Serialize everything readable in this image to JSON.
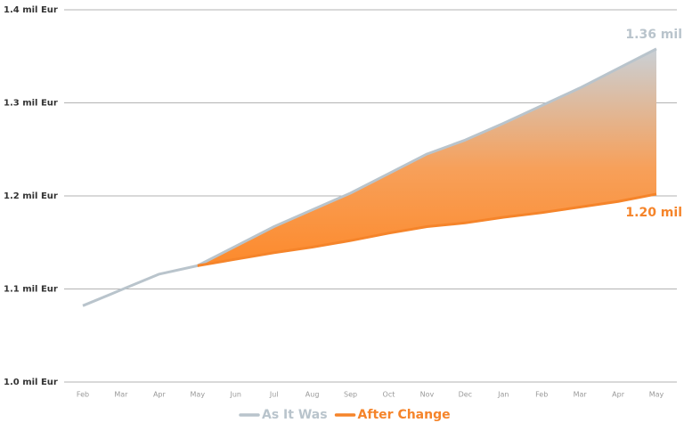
{
  "chart_data": {
    "type": "line",
    "categories": [
      "Feb",
      "Mar",
      "Apr",
      "May",
      "Jun",
      "Jul",
      "Aug",
      "Sep",
      "Oct",
      "Nov",
      "Dec",
      "Jan",
      "Feb",
      "Mar",
      "Apr",
      "May"
    ],
    "series": [
      {
        "name": "As It Was",
        "color": "#b9c4cc",
        "values": [
          1.082,
          1.099,
          1.116,
          1.125,
          1.146,
          1.167,
          1.185,
          1.203,
          1.224,
          1.245,
          1.26,
          1.278,
          1.297,
          1.316,
          1.337,
          1.358
        ],
        "value_labels": [
          null,
          null,
          null,
          null,
          null,
          null,
          null,
          null,
          null,
          null,
          null,
          null,
          null,
          null,
          null,
          "1.36 mil"
        ]
      },
      {
        "name": "After Change",
        "color": "#f5842a",
        "values": [
          null,
          null,
          null,
          1.125,
          1.132,
          1.139,
          1.145,
          1.152,
          1.16,
          1.167,
          1.171,
          1.177,
          1.182,
          1.188,
          1.194,
          1.202
        ],
        "value_labels": [
          null,
          null,
          null,
          null,
          null,
          null,
          null,
          null,
          null,
          null,
          null,
          null,
          null,
          null,
          null,
          "1.20 mil"
        ]
      }
    ],
    "ylim": [
      1.0,
      1.4
    ],
    "yticks": [
      {
        "value": 1.0,
        "label": "1.0 mil Eur"
      },
      {
        "value": 1.1,
        "label": "1.1 mil Eur"
      },
      {
        "value": 1.2,
        "label": "1.2 mil Eur"
      },
      {
        "value": 1.3,
        "label": "1.3 mil Eur"
      },
      {
        "value": 1.4,
        "label": "1.4 mil Eur"
      }
    ],
    "grid": true,
    "legend": "bottom"
  }
}
